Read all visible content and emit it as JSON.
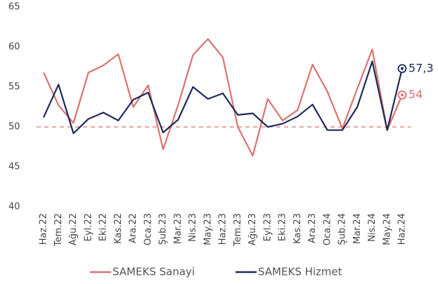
{
  "chart_data": {
    "type": "line",
    "categories": [
      "Haz.22",
      "Tem.22",
      "Ağu.22",
      "Eyl.22",
      "Eki.22",
      "Kas.22",
      "Ara.22",
      "Oca.23",
      "Şub.23",
      "Mar.23",
      "Nis.23",
      "May.23",
      "Haz.23",
      "Tem.23",
      "Ağu.23",
      "Eyl.23",
      "Eki.23",
      "Kas.23",
      "Ara.23",
      "Oca.24",
      "Şub.24",
      "Mar.24",
      "Nis.24",
      "May.24",
      "Haz.24"
    ],
    "series": [
      {
        "name": "SAMEKS Sanayi",
        "color": "#d9736f",
        "values": [
          56.8,
          52.7,
          50.5,
          56.8,
          57.7,
          59.1,
          52.5,
          55.2,
          47.2,
          52.7,
          59.0,
          61.0,
          58.7,
          50.0,
          46.4,
          53.5,
          50.8,
          52.1,
          57.8,
          54.4,
          49.8,
          54.8,
          59.7,
          49.6,
          54
        ],
        "value_labels": [
          null,
          null,
          null,
          null,
          null,
          null,
          null,
          null,
          null,
          null,
          null,
          null,
          null,
          null,
          null,
          null,
          null,
          null,
          null,
          null,
          null,
          null,
          null,
          null,
          "54"
        ]
      },
      {
        "name": "SAMEKS Hizmet",
        "color": "#1f2a5a",
        "values": [
          51.2,
          55.3,
          49.2,
          51.0,
          51.8,
          50.8,
          53.4,
          54.3,
          49.3,
          50.9,
          55.0,
          53.5,
          54.2,
          51.5,
          51.7,
          50.0,
          50.4,
          51.3,
          52.8,
          49.6,
          49.6,
          52.5,
          58.2,
          49.6,
          57.3
        ],
        "value_labels": [
          null,
          null,
          null,
          null,
          null,
          null,
          null,
          null,
          null,
          null,
          null,
          null,
          null,
          null,
          null,
          null,
          null,
          null,
          null,
          null,
          null,
          null,
          null,
          null,
          "57,3"
        ]
      }
    ],
    "ylim": [
      40,
      65
    ],
    "yticks": [
      40,
      45,
      50,
      55,
      60,
      65
    ],
    "reference_line": {
      "value": 50,
      "color": "#d9736f",
      "dashed": true
    },
    "legend": "bottom"
  }
}
